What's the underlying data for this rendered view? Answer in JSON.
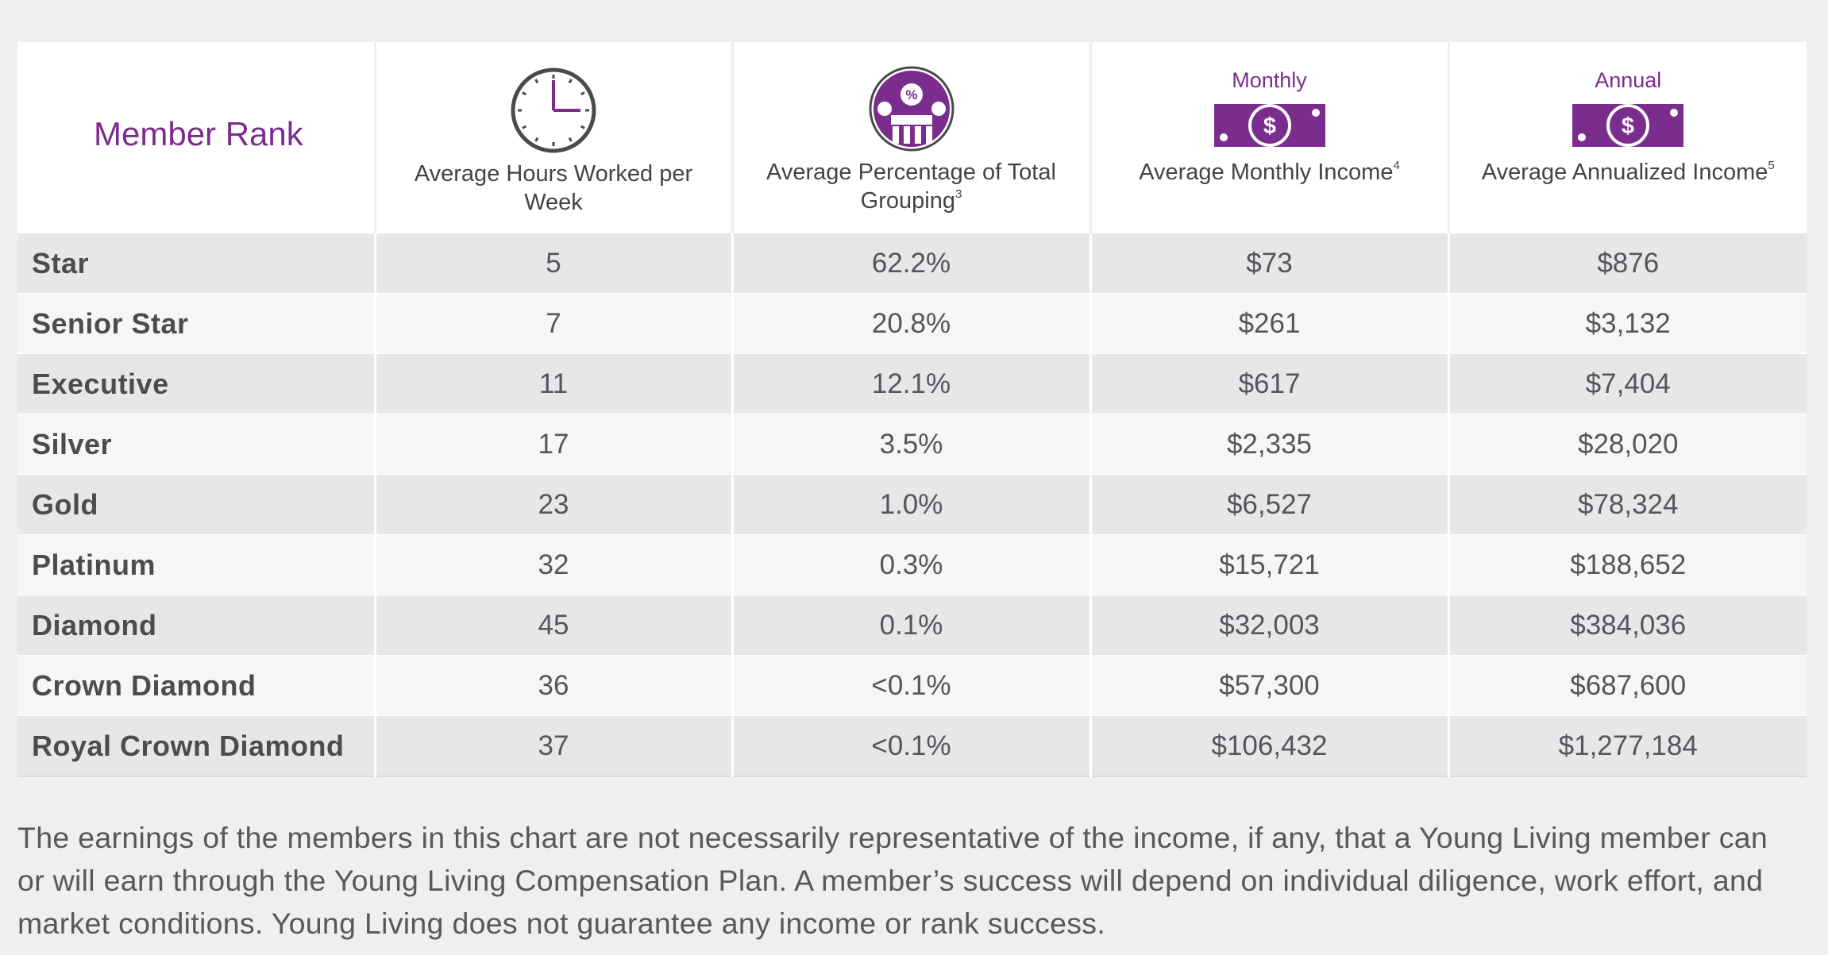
{
  "colors": {
    "accent": "#7b2d8e",
    "background": "#efeff0",
    "row_dark": "#e7e7e9",
    "row_light": "#f6f6f7",
    "text": "#55555a"
  },
  "header": {
    "rank_label": "Member Rank",
    "hours": {
      "icon": "clock-icon",
      "label": "Average Hours Worked per Week"
    },
    "percentage": {
      "icon": "people-percent-icon",
      "label": "Average Percentage of Total Grouping",
      "footnote": "3"
    },
    "monthly": {
      "tag": "Monthly",
      "icon": "dollar-bill-icon",
      "label": "Average Monthly Income",
      "footnote": "4"
    },
    "annual": {
      "tag": "Annual",
      "icon": "dollar-bill-icon",
      "label": "Average Annualized Income",
      "footnote": "5"
    }
  },
  "chart_data": {
    "type": "table",
    "columns": [
      "Member Rank",
      "Average Hours Worked per Week",
      "Average Percentage of Total Grouping",
      "Average Monthly Income",
      "Average Annualized Income"
    ],
    "rows": [
      {
        "rank": "Star",
        "hours": "5",
        "percentage": "62.2%",
        "monthly": "$73",
        "annual": "$876"
      },
      {
        "rank": "Senior Star",
        "hours": "7",
        "percentage": "20.8%",
        "monthly": "$261",
        "annual": "$3,132"
      },
      {
        "rank": "Executive",
        "hours": "11",
        "percentage": "12.1%",
        "monthly": "$617",
        "annual": "$7,404"
      },
      {
        "rank": "Silver",
        "hours": "17",
        "percentage": "3.5%",
        "monthly": "$2,335",
        "annual": "$28,020"
      },
      {
        "rank": "Gold",
        "hours": "23",
        "percentage": "1.0%",
        "monthly": "$6,527",
        "annual": "$78,324"
      },
      {
        "rank": "Platinum",
        "hours": "32",
        "percentage": "0.3%",
        "monthly": "$15,721",
        "annual": "$188,652"
      },
      {
        "rank": "Diamond",
        "hours": "45",
        "percentage": "0.1%",
        "monthly": "$32,003",
        "annual": "$384,036"
      },
      {
        "rank": "Crown Diamond",
        "hours": "36",
        "percentage": "<0.1%",
        "monthly": "$57,300",
        "annual": "$687,600"
      },
      {
        "rank": "Royal Crown Diamond",
        "hours": "37",
        "percentage": "<0.1%",
        "monthly": "$106,432",
        "annual": "$1,277,184"
      }
    ]
  },
  "disclaimer": "The earnings of the members in this chart are not necessarily representative of the income, if any, that a Young Living member can or will earn through the Young Living Compensation Plan. A member’s success will depend on individual diligence, work effort, and market conditions. Young Living does not guarantee any income or rank success."
}
